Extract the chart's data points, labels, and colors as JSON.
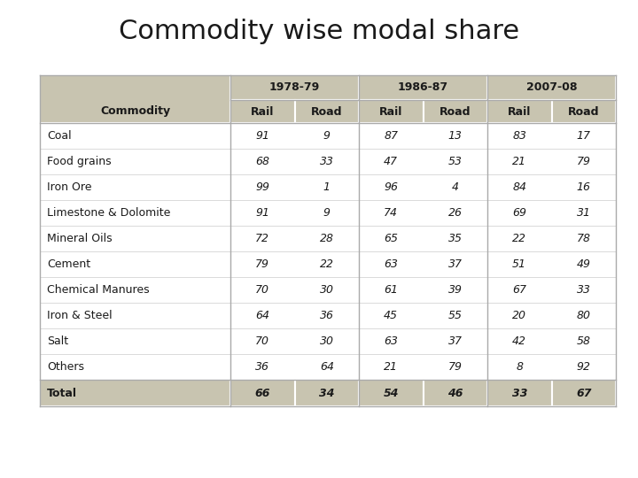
{
  "title": "Commodity wise modal share",
  "title_fontsize": 22,
  "background_color": "#ffffff",
  "table_bg_header": "#c8c4b0",
  "table_bg_data_odd": "#ffffff",
  "table_bg_data_even": "#ffffff",
  "table_bg_total": "#c8c4b0",
  "commodities": [
    "Coal",
    "Food grains",
    "Iron Ore",
    "Limestone & Dolomite",
    "Mineral Oils",
    "Cement",
    "Chemical Manures",
    "Iron & Steel",
    "Salt",
    "Others",
    "Total"
  ],
  "years": [
    "1978-79",
    "1986-87",
    "2007-08"
  ],
  "sub_headers": [
    "Rail",
    "Road",
    "Rail",
    "Road",
    "Rail",
    "Road"
  ],
  "data": [
    [
      91,
      9,
      87,
      13,
      83,
      17
    ],
    [
      68,
      33,
      47,
      53,
      21,
      79
    ],
    [
      99,
      1,
      96,
      4,
      84,
      16
    ],
    [
      91,
      9,
      74,
      26,
      69,
      31
    ],
    [
      72,
      28,
      65,
      35,
      22,
      78
    ],
    [
      79,
      22,
      63,
      37,
      51,
      49
    ],
    [
      70,
      30,
      61,
      39,
      67,
      33
    ],
    [
      64,
      36,
      45,
      55,
      20,
      80
    ],
    [
      70,
      30,
      63,
      37,
      42,
      58
    ],
    [
      36,
      64,
      21,
      79,
      8,
      92
    ],
    [
      66,
      34,
      54,
      46,
      33,
      67
    ]
  ],
  "header_fontsize": 9,
  "data_fontsize": 9,
  "commodity_fontsize": 9
}
